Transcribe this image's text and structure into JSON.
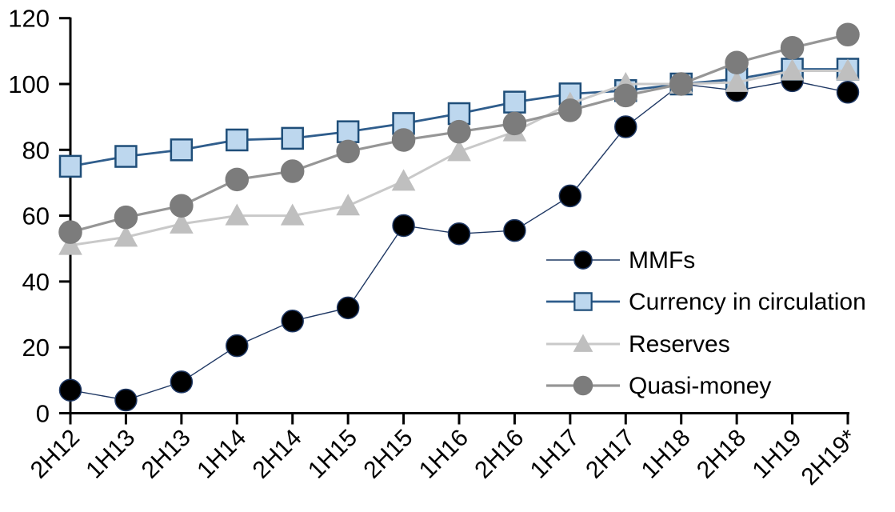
{
  "chart_data": {
    "type": "line",
    "title": "",
    "categories": [
      "2H12",
      "1H13",
      "2H13",
      "1H14",
      "2H14",
      "1H15",
      "2H15",
      "1H16",
      "2H16",
      "1H17",
      "2H17",
      "1H18",
      "2H18",
      "1H19",
      "2H19*"
    ],
    "series": [
      {
        "name": "MMFs",
        "marker": "circle",
        "marker_fill": "#000000",
        "marker_stroke": "#1F3864",
        "line_color": "#1F3864",
        "line_width": 1.4,
        "marker_size": 27,
        "values": [
          7,
          4,
          9.5,
          20.5,
          28,
          32,
          57,
          54.5,
          55.5,
          66,
          87,
          100,
          98,
          101,
          97.5
        ]
      },
      {
        "name": "Currency in circulation",
        "marker": "square",
        "marker_fill": "#BDD7EE",
        "marker_stroke": "#1F4E79",
        "line_color": "#2F5D8C",
        "line_width": 2.8,
        "marker_size": 26,
        "values": [
          75,
          78,
          80,
          83,
          83.5,
          85.5,
          88,
          91,
          94.5,
          97,
          98,
          100,
          101.5,
          104.5,
          104.5
        ]
      },
      {
        "name": "Reserves",
        "marker": "triangle",
        "marker_fill": "#BFBFBF",
        "marker_stroke": "#BFBFBF",
        "line_color": "#C9C9C9",
        "line_width": 3,
        "marker_size": 28,
        "values": [
          51,
          53.5,
          57.5,
          60,
          60,
          63,
          70.5,
          79.5,
          85.5,
          94,
          100,
          100,
          100.5,
          104,
          104
        ]
      },
      {
        "name": "Quasi-money",
        "marker": "circle",
        "marker_fill": "#7C7C7C",
        "marker_stroke": "#7C7C7C",
        "line_color": "#969696",
        "line_width": 3.2,
        "marker_size": 28,
        "values": [
          55,
          59.5,
          63,
          71,
          73.5,
          79.5,
          83,
          85.5,
          88,
          92,
          96.5,
          100,
          106.5,
          111,
          115
        ]
      }
    ],
    "y_axis": {
      "min": 0,
      "max": 120,
      "step": 20,
      "tick_labels": [
        "0",
        "20",
        "40",
        "60",
        "80",
        "100",
        "120"
      ]
    },
    "x_tick_labels": [
      "2H12",
      "1H13",
      "2H13",
      "1H14",
      "2H14",
      "1H15",
      "2H15",
      "1H16",
      "2H16",
      "1H17",
      "2H17",
      "1H18",
      "2H18",
      "1H19",
      "2H19*"
    ],
    "legend": {
      "entries": [
        "MMFs",
        "Currency in circulation",
        "Reserves",
        "Quasi-money"
      ],
      "position": "inside-right"
    },
    "grid": false,
    "axis_color": "#000000",
    "background": "#FFFFFF"
  }
}
